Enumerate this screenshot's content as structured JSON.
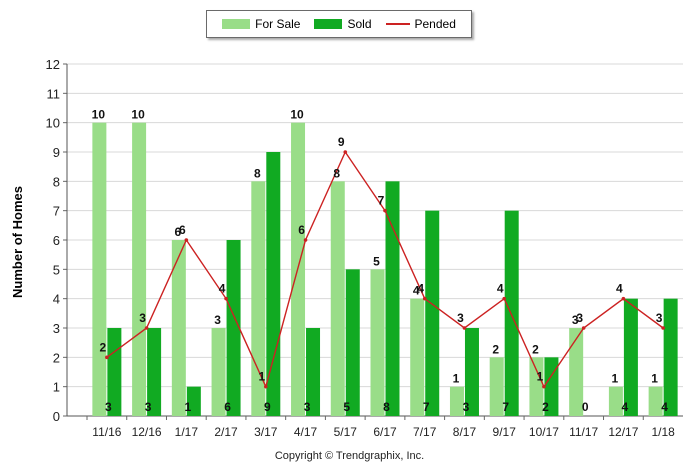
{
  "legend": {
    "items": [
      {
        "label": "For Sale",
        "kind": "bar",
        "color": "#99dd88"
      },
      {
        "label": "Sold",
        "kind": "bar",
        "color": "#11aa22"
      },
      {
        "label": "Pended",
        "kind": "line",
        "color": "#cc2222"
      }
    ]
  },
  "copyright": "Copyright © Trendgraphix, Inc.",
  "chart_data": {
    "type": "bar",
    "title": "",
    "xlabel": "",
    "ylabel": "Number of Homes",
    "ylim": [
      0,
      12
    ],
    "yticks": [
      0,
      1,
      2,
      3,
      4,
      5,
      6,
      7,
      8,
      9,
      10,
      11,
      12
    ],
    "grid": true,
    "legend_position": "top-center",
    "categories": [
      "11/16",
      "12/16",
      "1/17",
      "2/17",
      "3/17",
      "4/17",
      "5/17",
      "6/17",
      "7/17",
      "8/17",
      "9/17",
      "10/17",
      "11/17",
      "12/17",
      "1/18"
    ],
    "series": [
      {
        "name": "For Sale",
        "type": "bar",
        "color": "#99dd88",
        "values": [
          10,
          10,
          6,
          3,
          8,
          10,
          8,
          5,
          4,
          1,
          2,
          2,
          3,
          1,
          1
        ]
      },
      {
        "name": "Sold",
        "type": "bar",
        "color": "#11aa22",
        "values": [
          3,
          3,
          1,
          6,
          9,
          3,
          5,
          8,
          7,
          3,
          7,
          2,
          0,
          4,
          4
        ]
      },
      {
        "name": "Pended",
        "type": "line",
        "color": "#cc2222",
        "values": [
          2,
          3,
          6,
          4,
          1,
          6,
          9,
          7,
          4,
          3,
          4,
          1,
          3,
          4,
          3
        ]
      }
    ]
  }
}
